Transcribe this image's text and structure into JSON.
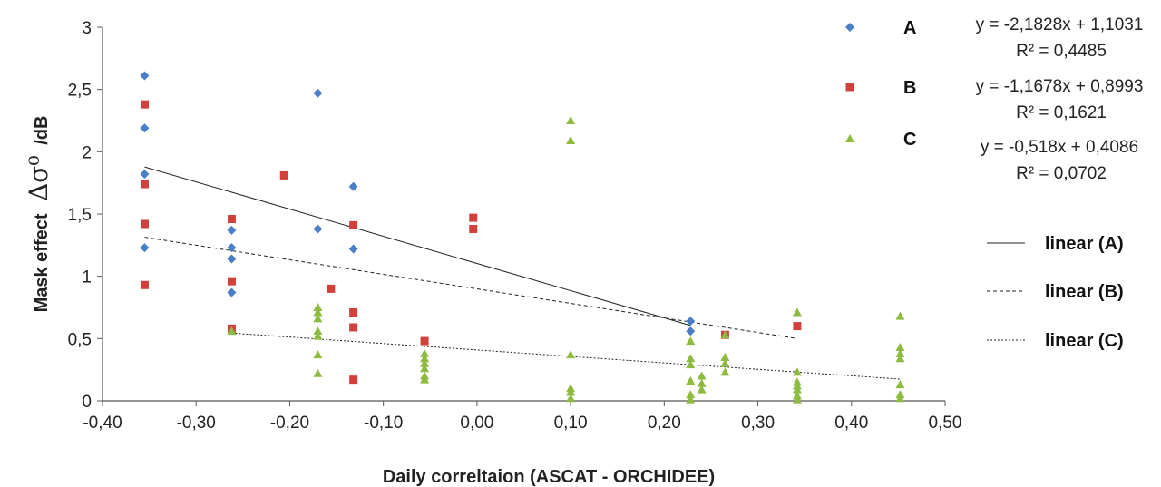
{
  "chart_data": {
    "type": "scatter",
    "xlabel": "Daily correltaion (ASCAT - ORCHIDEE)",
    "ylabel_prefix": "Mask effect",
    "ylabel_symbol": "Δσ⁰",
    "ylabel_unit": "/dB",
    "xlim": [
      -0.4,
      0.5
    ],
    "ylim": [
      0,
      3
    ],
    "x_ticks": [
      "-0,40",
      "-0,30",
      "-0,20",
      "-0,10",
      "0,00",
      "0,10",
      "0,20",
      "0,30",
      "0,40",
      "0,50"
    ],
    "y_ticks": [
      "0",
      "0,5",
      "1",
      "1,5",
      "2",
      "2,5",
      "3"
    ],
    "grid": false,
    "legend_position": "right",
    "series": [
      {
        "name": "A",
        "color": "#4a7ec9",
        "marker": "diamond",
        "points": [
          [
            -0.355,
            2.61
          ],
          [
            -0.355,
            2.19
          ],
          [
            -0.355,
            1.82
          ],
          [
            -0.355,
            1.23
          ],
          [
            -0.262,
            1.37
          ],
          [
            -0.262,
            1.23
          ],
          [
            -0.262,
            1.14
          ],
          [
            -0.262,
            0.87
          ],
          [
            -0.17,
            2.47
          ],
          [
            -0.17,
            1.38
          ],
          [
            -0.132,
            1.72
          ],
          [
            -0.132,
            1.22
          ],
          [
            0.228,
            0.64
          ],
          [
            0.228,
            0.56
          ]
        ],
        "trend": {
          "label": "linear (A)",
          "slope": -2.1828,
          "intercept": 1.1031,
          "x_range": [
            -0.355,
            0.228
          ],
          "dash": "solid",
          "equation": "y = -2,1828x + 1,1031",
          "r2": "R² = 0,4485"
        }
      },
      {
        "name": "B",
        "color": "#d1403a",
        "marker": "square",
        "points": [
          [
            -0.355,
            2.38
          ],
          [
            -0.355,
            1.74
          ],
          [
            -0.355,
            1.42
          ],
          [
            -0.355,
            0.93
          ],
          [
            -0.262,
            1.46
          ],
          [
            -0.262,
            0.96
          ],
          [
            -0.262,
            0.58
          ],
          [
            -0.206,
            1.81
          ],
          [
            -0.156,
            0.9
          ],
          [
            -0.132,
            1.41
          ],
          [
            -0.132,
            0.71
          ],
          [
            -0.132,
            0.59
          ],
          [
            -0.132,
            0.17
          ],
          [
            -0.056,
            0.48
          ],
          [
            -0.004,
            1.47
          ],
          [
            -0.004,
            1.38
          ],
          [
            0.265,
            0.53
          ],
          [
            0.342,
            0.6
          ]
        ],
        "trend": {
          "label": "linear (B)",
          "slope": -1.1678,
          "intercept": 0.8993,
          "x_range": [
            -0.355,
            0.342
          ],
          "dash": "dashed",
          "equation": "y = -1,1678x + 0,8993",
          "r2": "R² = 0,1621"
        }
      },
      {
        "name": "C",
        "color": "#8dbb3f",
        "marker": "triangle",
        "points": [
          [
            -0.262,
            0.56
          ],
          [
            -0.17,
            0.75
          ],
          [
            -0.17,
            0.71
          ],
          [
            -0.17,
            0.66
          ],
          [
            -0.17,
            0.56
          ],
          [
            -0.17,
            0.52
          ],
          [
            -0.17,
            0.37
          ],
          [
            -0.17,
            0.22
          ],
          [
            -0.056,
            0.38
          ],
          [
            -0.056,
            0.34
          ],
          [
            -0.056,
            0.3
          ],
          [
            -0.056,
            0.26
          ],
          [
            -0.056,
            0.2
          ],
          [
            -0.056,
            0.17
          ],
          [
            0.1,
            2.25
          ],
          [
            0.1,
            2.09
          ],
          [
            0.1,
            0.37
          ],
          [
            0.1,
            0.1
          ],
          [
            0.1,
            0.07
          ],
          [
            0.1,
            0.02
          ],
          [
            0.228,
            0.48
          ],
          [
            0.228,
            0.34
          ],
          [
            0.228,
            0.29
          ],
          [
            0.228,
            0.16
          ],
          [
            0.228,
            0.05
          ],
          [
            0.228,
            0.01
          ],
          [
            0.24,
            0.2
          ],
          [
            0.24,
            0.14
          ],
          [
            0.24,
            0.09
          ],
          [
            0.265,
            0.53
          ],
          [
            0.265,
            0.35
          ],
          [
            0.265,
            0.3
          ],
          [
            0.265,
            0.23
          ],
          [
            0.342,
            0.71
          ],
          [
            0.342,
            0.23
          ],
          [
            0.342,
            0.15
          ],
          [
            0.342,
            0.12
          ],
          [
            0.342,
            0.09
          ],
          [
            0.342,
            0.04
          ],
          [
            0.342,
            0.01
          ],
          [
            0.452,
            0.68
          ],
          [
            0.452,
            0.43
          ],
          [
            0.452,
            0.38
          ],
          [
            0.452,
            0.34
          ],
          [
            0.452,
            0.13
          ],
          [
            0.452,
            0.05
          ],
          [
            0.452,
            0.02
          ]
        ],
        "trend": {
          "label": "linear (C)",
          "slope": -0.518,
          "intercept": 0.4086,
          "x_range": [
            -0.262,
            0.452
          ],
          "dash": "dotted",
          "equation": "y = -0,518x + 0,4086",
          "r2": "R² = 0,0702"
        }
      }
    ]
  }
}
